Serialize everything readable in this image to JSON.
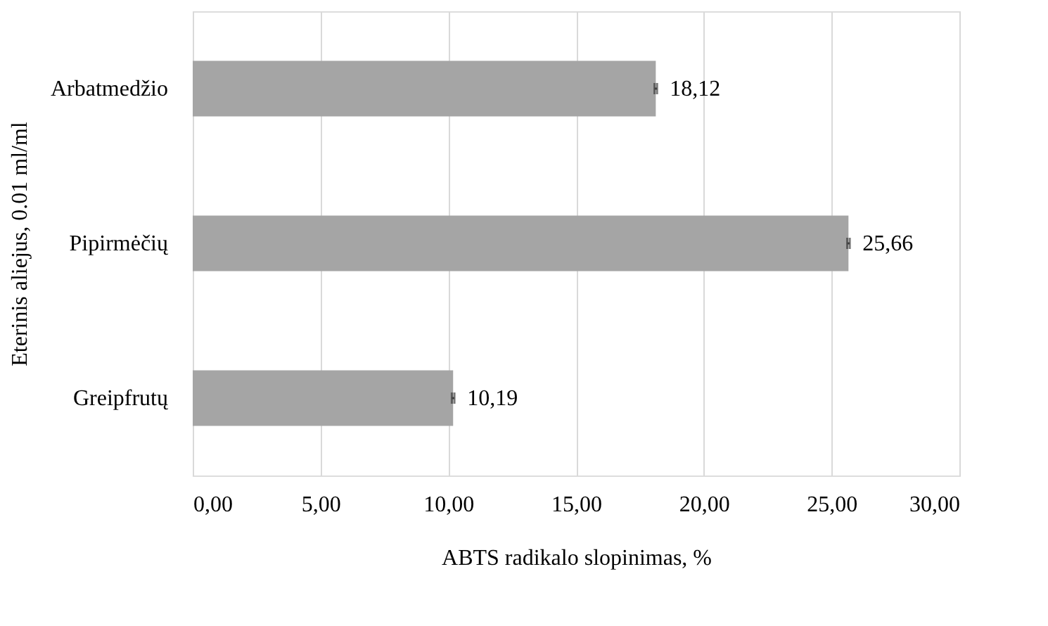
{
  "chart_data": {
    "type": "bar",
    "orientation": "horizontal",
    "xlabel": "ABTS radikalo slopinimas, %",
    "ylabel": "Eterinis aliejus, 0.01 ml/ml",
    "categories": [
      "Arbatmedžio",
      "Pipirmėčių",
      "Greipfrutų"
    ],
    "values": [
      18.12,
      25.66,
      10.19
    ],
    "errors": [
      0.05,
      0.05,
      0.05
    ],
    "value_labels": [
      "18,12",
      "25,66",
      "10,19"
    ],
    "color": "#a5a5a5",
    "xlim": [
      0,
      30
    ],
    "xticks": [
      {
        "value": 0,
        "label": "0,00"
      },
      {
        "value": 5,
        "label": "5,00"
      },
      {
        "value": 10,
        "label": "10,00"
      },
      {
        "value": 15,
        "label": "15,00"
      },
      {
        "value": 20,
        "label": "20,00"
      },
      {
        "value": 25,
        "label": "25,00"
      },
      {
        "value": 30,
        "label": "30,00"
      }
    ],
    "grid": "x"
  }
}
